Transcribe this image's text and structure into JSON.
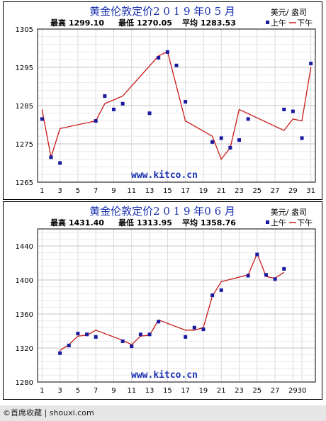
{
  "chart_data": [
    {
      "type": "line",
      "title": "黄金伦敦定价2 0 1 9 年0 5 月",
      "unit": "美元/ 盎司",
      "stats": {
        "high": "最高 1299.10",
        "low": "最低 1270.05",
        "avg": "平均 1283.53"
      },
      "legend": {
        "am": "上午",
        "pm": "下午"
      },
      "watermark": "www.kitco.cn",
      "xlim": [
        0.5,
        31.5
      ],
      "ylim": [
        1265,
        1305
      ],
      "yticks": [
        1265,
        1275,
        1285,
        1295,
        1305
      ],
      "xticks": [
        1,
        3,
        5,
        7,
        9,
        11,
        13,
        15,
        17,
        19,
        21,
        23,
        25,
        27,
        29,
        31
      ],
      "series": [
        {
          "name": "上午",
          "marker": "square",
          "points": [
            [
              1,
              1281.5
            ],
            [
              2,
              1271.5
            ],
            [
              3,
              1270
            ],
            [
              7,
              1281
            ],
            [
              8,
              1287.5
            ],
            [
              9,
              1284
            ],
            [
              10,
              1285.5
            ],
            [
              13,
              1283
            ],
            [
              14,
              1297.5
            ],
            [
              15,
              1299
            ],
            [
              16,
              1295.5
            ],
            [
              17,
              1286
            ],
            [
              20,
              1275.5
            ],
            [
              21,
              1276.5
            ],
            [
              22,
              1274
            ],
            [
              23,
              1276
            ],
            [
              24,
              1281.5
            ],
            [
              28,
              1284
            ],
            [
              29,
              1283.5
            ],
            [
              30,
              1276.5
            ],
            [
              31,
              1296
            ]
          ]
        },
        {
          "name": "下午",
          "marker": "line",
          "points": [
            [
              1,
              1284
            ],
            [
              2,
              1271.5
            ],
            [
              3,
              1279
            ],
            [
              7,
              1281
            ],
            [
              8,
              1285.5
            ],
            [
              9,
              1286.5
            ],
            [
              10,
              1287.5
            ],
            [
              14,
              1298
            ],
            [
              15,
              1299.1
            ],
            [
              17,
              1281
            ],
            [
              20,
              1277
            ],
            [
              21,
              1271
            ],
            [
              22,
              1274
            ],
            [
              23,
              1284
            ],
            [
              28,
              1278.5
            ],
            [
              29,
              1281.5
            ],
            [
              30,
              1281
            ],
            [
              31,
              1295
            ]
          ]
        }
      ]
    },
    {
      "type": "line",
      "title": "黄金伦敦定价2 0 1 9 年0 6 月",
      "unit": "美元/ 盎司",
      "stats": {
        "high": "最高 1431.40",
        "low": "最低 1313.95",
        "avg": "平均 1358.76"
      },
      "legend": {
        "am": "上午",
        "pm": "下午"
      },
      "watermark": "www.kitco.cn",
      "xlim": [
        0.5,
        31.5
      ],
      "ylim": [
        1280,
        1460
      ],
      "yticks": [
        1280,
        1320,
        1360,
        1400,
        1440
      ],
      "xticks": [
        1,
        3,
        5,
        7,
        9,
        11,
        13,
        15,
        17,
        19,
        21,
        23,
        25,
        27,
        29,
        30
      ],
      "series": [
        {
          "name": "上午",
          "marker": "square",
          "points": [
            [
              3,
              1314
            ],
            [
              4,
              1323
            ],
            [
              5,
              1337
            ],
            [
              6,
              1336
            ],
            [
              7,
              1333
            ],
            [
              10,
              1328
            ],
            [
              11,
              1322
            ],
            [
              12,
              1336
            ],
            [
              13,
              1336
            ],
            [
              14,
              1351
            ],
            [
              17,
              1333
            ],
            [
              18,
              1344
            ],
            [
              19,
              1342
            ],
            [
              20,
              1382
            ],
            [
              21,
              1388
            ],
            [
              24,
              1405
            ],
            [
              25,
              1430
            ],
            [
              26,
              1406
            ],
            [
              27,
              1401
            ],
            [
              28,
              1413
            ]
          ]
        },
        {
          "name": "下午",
          "marker": "line",
          "points": [
            [
              3,
              1317
            ],
            [
              4,
              1324
            ],
            [
              5,
              1334
            ],
            [
              6,
              1335
            ],
            [
              7,
              1341
            ],
            [
              10,
              1329
            ],
            [
              11,
              1324
            ],
            [
              12,
              1334
            ],
            [
              13,
              1335
            ],
            [
              14,
              1353
            ],
            [
              17,
              1341
            ],
            [
              18,
              1341
            ],
            [
              19,
              1344
            ],
            [
              20,
              1381
            ],
            [
              21,
              1398
            ],
            [
              24,
              1406
            ],
            [
              25,
              1431
            ],
            [
              26,
              1404
            ],
            [
              27,
              1402
            ],
            [
              28,
              1409
            ]
          ]
        }
      ]
    }
  ],
  "footer": {
    "label": "©首席收藏 | shouxi.com"
  }
}
